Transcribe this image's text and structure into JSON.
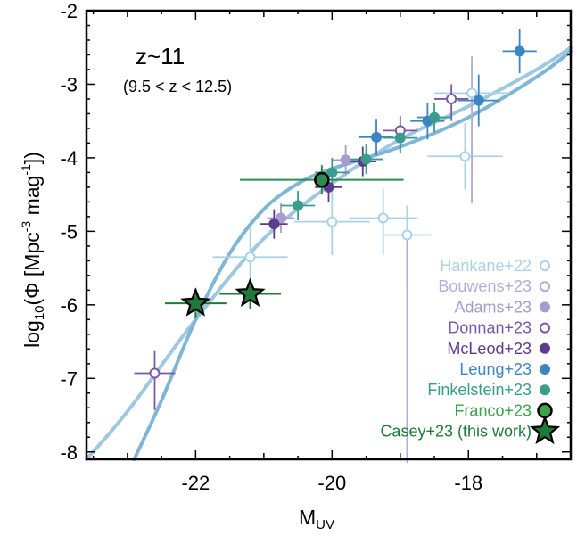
{
  "chart_data": {
    "type": "scatter",
    "title": "",
    "annotation_main": "z~11",
    "annotation_range": "(9.5 < z < 12.5)",
    "xlabel_base": "M",
    "xlabel_sub": "UV",
    "ylabel_pre": "log",
    "ylabel_sub": "10",
    "ylabel_mid": "(Φ [Mpc",
    "ylabel_sup": "-3",
    "ylabel_mid2": " mag",
    "ylabel_sup2": "-1",
    "ylabel_end": "])",
    "xlim": [
      -23.6,
      -16.5
    ],
    "ylim": [
      -8.1,
      -2.0
    ],
    "xticks": [
      -22,
      -20,
      -18
    ],
    "yticks": [
      -8,
      -7,
      -6,
      -5,
      -4,
      -3,
      -2
    ],
    "grid": false,
    "legend_position": "bottom-right",
    "curves": [
      {
        "color": "#9ec8e0",
        "points": [
          [
            -23.6,
            -8.1
          ],
          [
            -23.0,
            -7.45
          ],
          [
            -22.0,
            -6.2
          ],
          [
            -21.0,
            -5.1
          ],
          [
            -20.0,
            -4.35
          ],
          [
            -19.0,
            -3.75
          ],
          [
            -18.0,
            -3.3
          ],
          [
            -17.0,
            -2.8
          ],
          [
            -16.5,
            -2.5
          ]
        ]
      },
      {
        "color": "#7fb6d8",
        "points": [
          [
            -22.9,
            -8.1
          ],
          [
            -22.5,
            -7.3
          ],
          [
            -22.0,
            -6.2
          ],
          [
            -21.5,
            -5.3
          ],
          [
            -21.0,
            -4.7
          ],
          [
            -20.5,
            -4.35
          ],
          [
            -20.0,
            -4.15
          ],
          [
            -19.0,
            -3.85
          ],
          [
            -18.0,
            -3.45
          ],
          [
            -17.0,
            -2.9
          ],
          [
            -16.5,
            -2.55
          ]
        ]
      }
    ],
    "series": [
      {
        "name": "Harikane+22",
        "color": "#a9d2e4",
        "marker": "open-circle",
        "points": [
          {
            "x": -21.2,
            "y": -5.35,
            "xerr": 0.55,
            "yerr": [
              0.4,
              0.4
            ]
          },
          {
            "x": -20.0,
            "y": -4.87,
            "xerr": 0.55,
            "yerr": [
              0.45,
              0.45
            ]
          },
          {
            "x": -19.25,
            "y": -4.82,
            "xerr": 0.5,
            "yerr": [
              0.5,
              0.4
            ]
          },
          {
            "x": -18.9,
            "y": -5.05,
            "xerr": 0.35,
            "yerr": [
              0.7,
              0.4
            ]
          },
          {
            "x": -18.05,
            "y": -3.98,
            "xerr": 0.55,
            "yerr": [
              0.45,
              0.45
            ]
          },
          {
            "x": -17.95,
            "y": -3.12,
            "xerr": 0.55,
            "yerr": [
              1.5,
              0.4
            ]
          }
        ]
      },
      {
        "name": "Bouwens+23",
        "color": "#b3add6",
        "marker": "open-circle",
        "points": [
          {
            "x": -18.9,
            "y": -5.05,
            "xerr": 0.0,
            "yerr": [
              3.1,
              0.0
            ]
          },
          {
            "x": -17.95,
            "y": -3.12,
            "xerr": 0.0,
            "yerr": [
              1.5,
              0.5
            ]
          }
        ]
      },
      {
        "name": "Adams+23",
        "color": "#a69ccf",
        "marker": "filled-circle",
        "points": [
          {
            "x": -20.75,
            "y": -4.82,
            "xerr": 0.2,
            "yerr": [
              0.2,
              0.2
            ]
          },
          {
            "x": -19.8,
            "y": -4.03,
            "xerr": 0.2,
            "yerr": [
              0.2,
              0.2
            ]
          }
        ]
      },
      {
        "name": "Donnan+23",
        "color": "#7b58a6",
        "marker": "open-circle",
        "points": [
          {
            "x": -22.6,
            "y": -6.93,
            "xerr": 0.3,
            "yerr": [
              0.5,
              0.3
            ]
          },
          {
            "x": -19.0,
            "y": -3.63,
            "xerr": 0.25,
            "yerr": [
              0.3,
              0.2
            ]
          },
          {
            "x": -18.25,
            "y": -3.2,
            "xerr": 0.25,
            "yerr": [
              0.3,
              0.2
            ]
          }
        ]
      },
      {
        "name": "McLeod+23",
        "color": "#5c3c8e",
        "marker": "filled-circle",
        "points": [
          {
            "x": -20.85,
            "y": -4.9,
            "xerr": 0.2,
            "yerr": [
              0.2,
              0.2
            ]
          },
          {
            "x": -20.05,
            "y": -4.4,
            "xerr": 0.2,
            "yerr": [
              0.2,
              0.2
            ]
          },
          {
            "x": -19.55,
            "y": -4.05,
            "xerr": 0.2,
            "yerr": [
              0.2,
              0.2
            ]
          }
        ]
      },
      {
        "name": "Leung+23",
        "color": "#3d85c0",
        "marker": "filled-circle",
        "points": [
          {
            "x": -19.35,
            "y": -3.72,
            "xerr": 0.25,
            "yerr": [
              0.25,
              0.25
            ]
          },
          {
            "x": -18.6,
            "y": -3.5,
            "xerr": 0.25,
            "yerr": [
              0.25,
              0.25
            ]
          },
          {
            "x": -17.85,
            "y": -3.22,
            "xerr": 0.3,
            "yerr": [
              0.35,
              0.35
            ]
          },
          {
            "x": -17.25,
            "y": -2.55,
            "xerr": 0.25,
            "yerr": [
              0.3,
              0.3
            ]
          }
        ]
      },
      {
        "name": "Finkelstein+23",
        "color": "#3a9c8c",
        "marker": "filled-circle",
        "points": [
          {
            "x": -20.5,
            "y": -4.65,
            "xerr": 0.25,
            "yerr": [
              0.2,
              0.2
            ]
          },
          {
            "x": -20.0,
            "y": -4.2,
            "xerr": 0.25,
            "yerr": [
              0.2,
              0.2
            ]
          },
          {
            "x": -19.5,
            "y": -4.02,
            "xerr": 0.25,
            "yerr": [
              0.2,
              0.2
            ]
          },
          {
            "x": -19.0,
            "y": -3.73,
            "xerr": 0.25,
            "yerr": [
              0.2,
              0.2
            ]
          },
          {
            "x": -18.5,
            "y": -3.45,
            "xerr": 0.25,
            "yerr": [
              0.2,
              0.2
            ]
          }
        ]
      },
      {
        "name": "Franco+23",
        "color": "#2e8b57",
        "marker": "big-circle",
        "points": [
          {
            "x": -20.15,
            "y": -4.3,
            "xerr": 1.2,
            "yerr": [
              0.2,
              0.2
            ]
          }
        ]
      },
      {
        "name": "Casey+23 (this work)",
        "color": "#1f7a3a",
        "marker": "star",
        "points": [
          {
            "x": -22.0,
            "y": -5.98,
            "xerr": 0.45,
            "yerr": [
              0.2,
              0.2
            ]
          },
          {
            "x": -21.2,
            "y": -5.85,
            "xerr": 0.45,
            "yerr": [
              0.2,
              0.2
            ]
          }
        ]
      }
    ],
    "legend": [
      {
        "label": "Harikane+22",
        "color": "#a9d2e4",
        "marker": "open-circle"
      },
      {
        "label": "Bouwens+23",
        "color": "#b3add6",
        "marker": "open-circle"
      },
      {
        "label": "Adams+23",
        "color": "#a69ccf",
        "marker": "filled-circle"
      },
      {
        "label": "Donnan+23",
        "color": "#7b58a6",
        "marker": "open-circle"
      },
      {
        "label": "McLeod+23",
        "color": "#5c3c8e",
        "marker": "filled-circle"
      },
      {
        "label": "Leung+23",
        "color": "#3d85c0",
        "marker": "filled-circle"
      },
      {
        "label": "Finkelstein+23",
        "color": "#3a9c8c",
        "marker": "filled-circle"
      },
      {
        "label": "Franco+23",
        "color": "#3aa54a",
        "marker": "big-circle"
      },
      {
        "label": "Casey+23 (this work)",
        "color": "#1f7a3a",
        "marker": "star"
      }
    ]
  }
}
